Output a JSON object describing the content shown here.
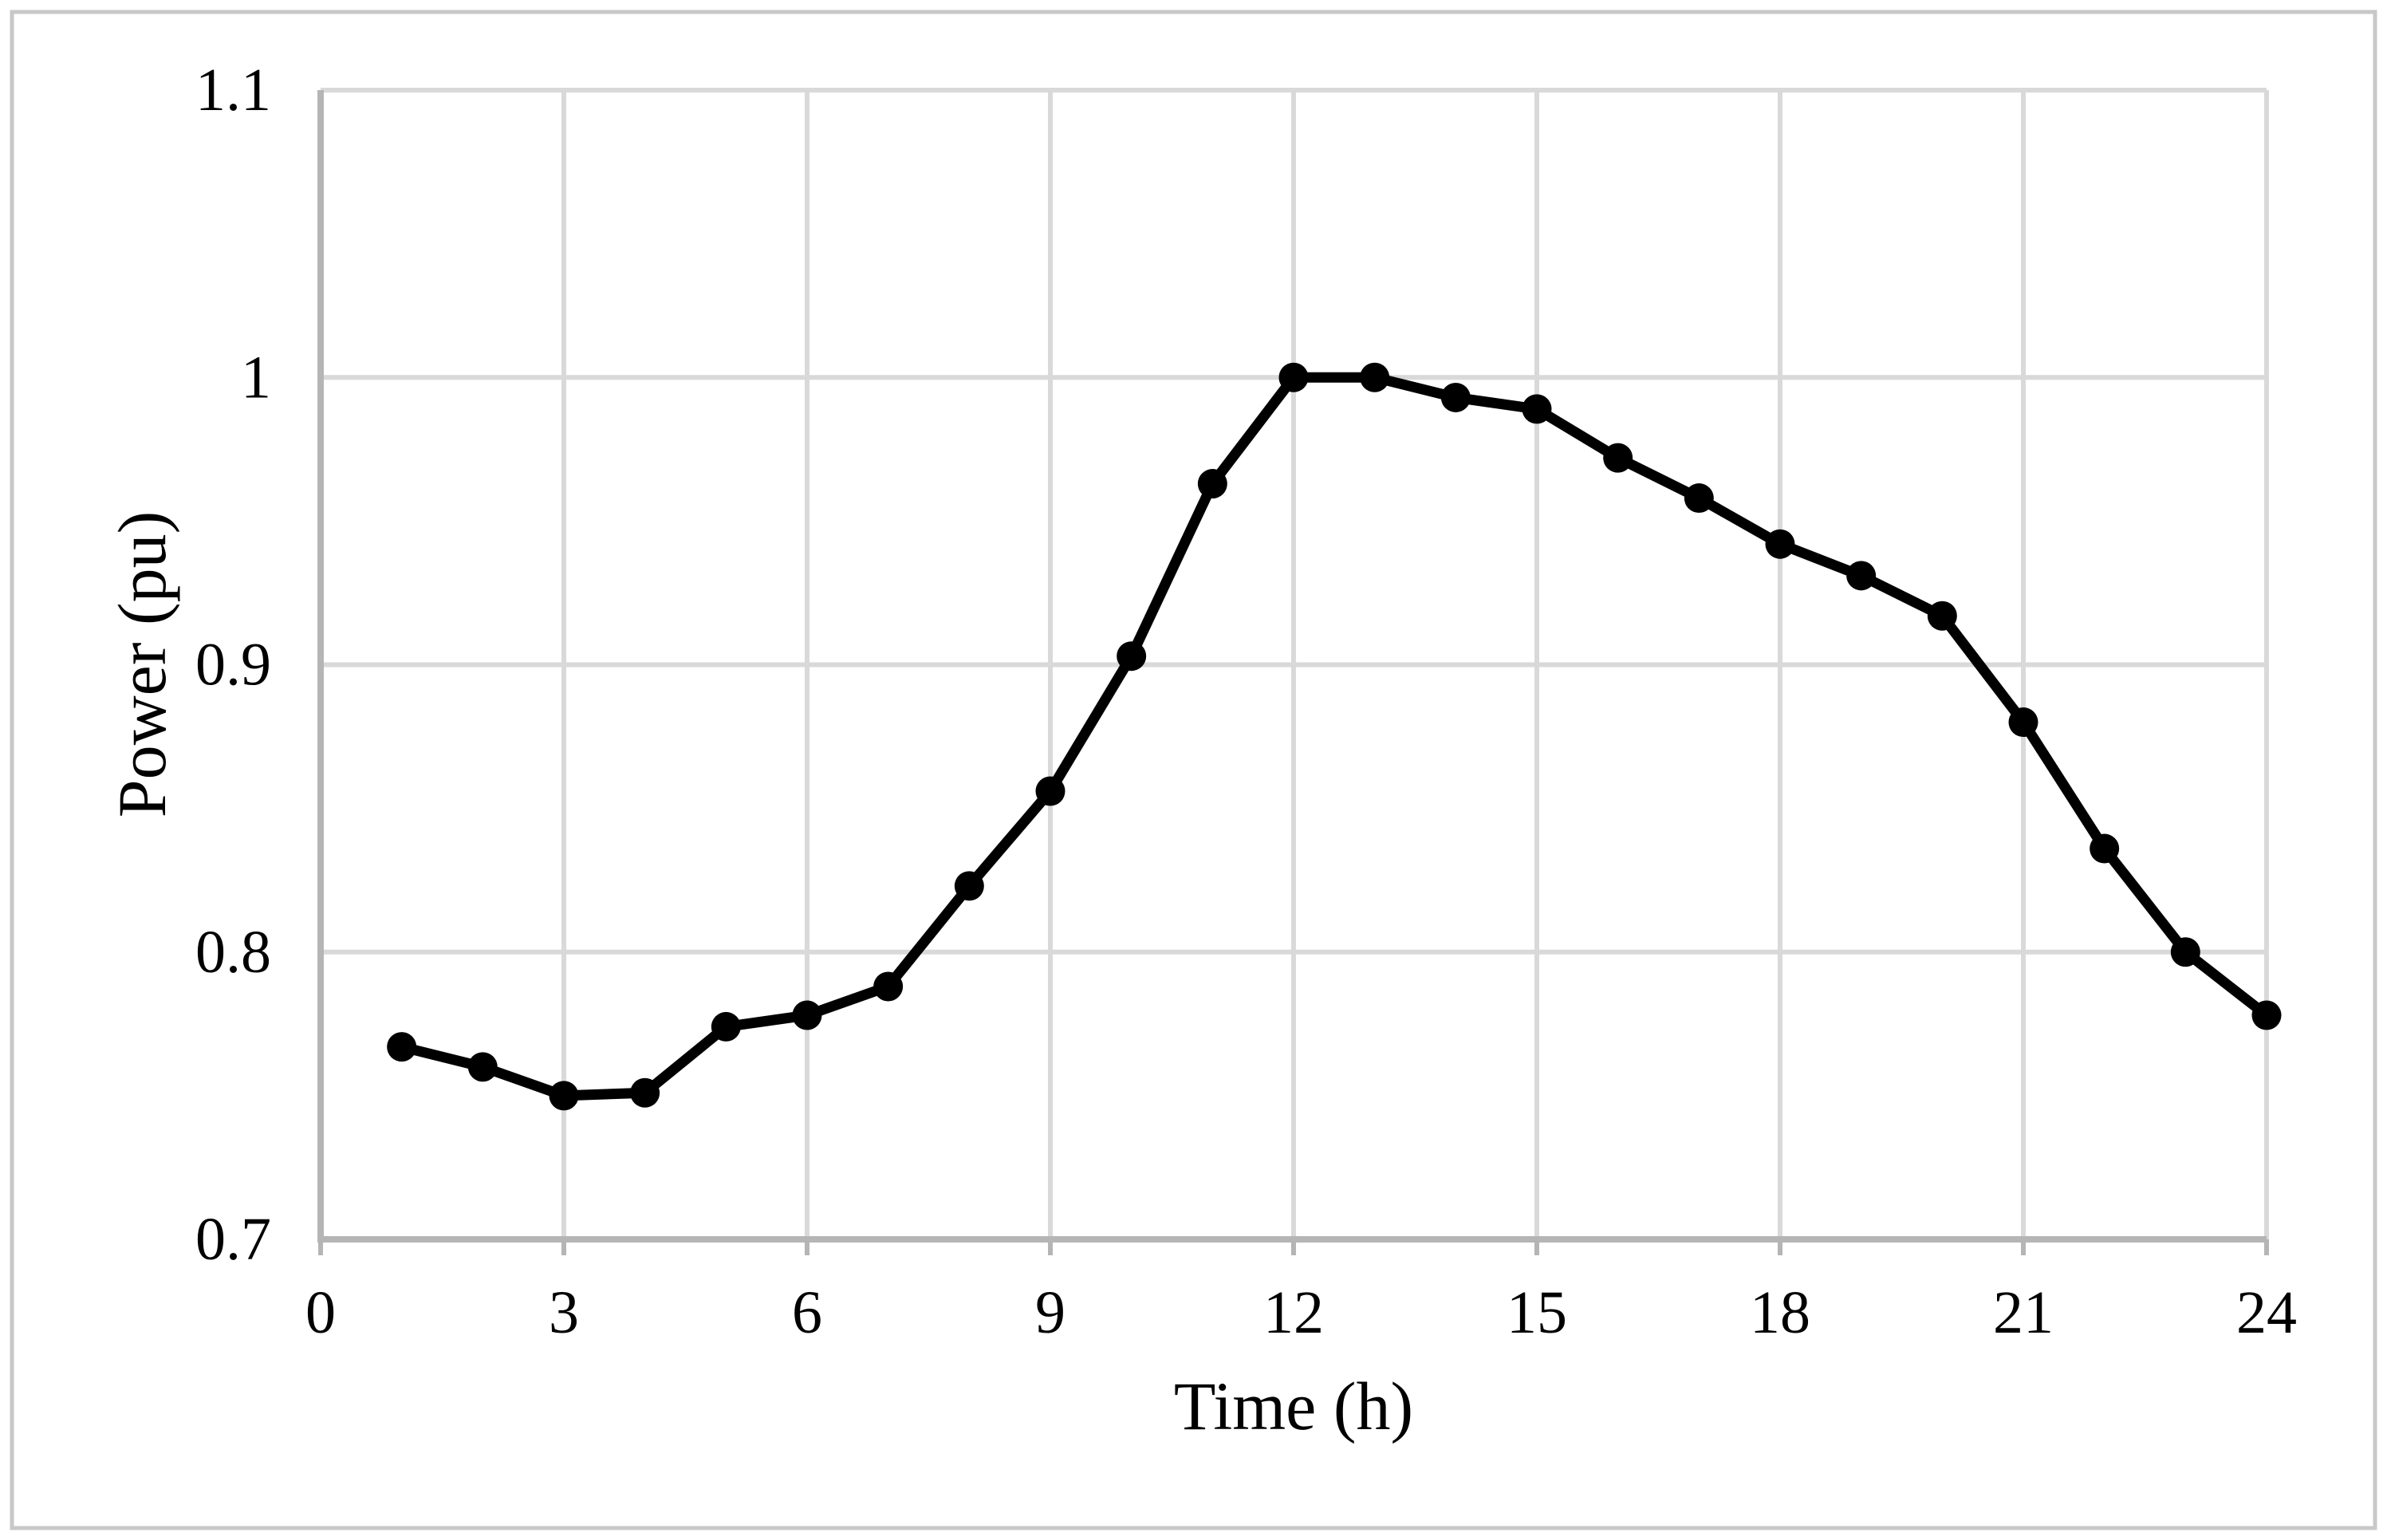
{
  "chart_data": {
    "type": "line",
    "title": "",
    "xlabel": "Time (h)",
    "ylabel": "Power (pu)",
    "x": [
      1,
      2,
      3,
      4,
      5,
      6,
      7,
      8,
      9,
      10,
      11,
      12,
      13,
      14,
      15,
      16,
      17,
      18,
      19,
      20,
      21,
      22,
      23,
      24
    ],
    "series": [
      {
        "name": "Power (pu)",
        "values": [
          0.767,
          0.76,
          0.75,
          0.751,
          0.774,
          0.778,
          0.788,
          0.823,
          0.856,
          0.903,
          0.963,
          1.0,
          1.0,
          0.993,
          0.989,
          0.972,
          0.958,
          0.942,
          0.931,
          0.917,
          0.88,
          0.836,
          0.8,
          0.778
        ]
      }
    ],
    "x_ticks": [
      0,
      3,
      6,
      9,
      12,
      15,
      18,
      21,
      24
    ],
    "x_tick_labels": [
      "0",
      "3",
      "6",
      "9",
      "12",
      "15",
      "18",
      "21",
      "24"
    ],
    "y_ticks": [
      0.7,
      0.8,
      0.9,
      1.0,
      1.1
    ],
    "y_tick_labels": [
      "0.7",
      "0.8",
      "0.9",
      "1",
      "1.1"
    ],
    "xlim": [
      0,
      24
    ],
    "ylim": [
      0.7,
      1.1
    ],
    "grid": true,
    "legend": false,
    "marker": "circle",
    "colors": {
      "series": "#000000",
      "marker": "#000000",
      "grid": "#d9d9d9",
      "axis": "#b5b5b5",
      "border": "#c8c8c8",
      "text": "#000000",
      "background": "#ffffff"
    }
  }
}
